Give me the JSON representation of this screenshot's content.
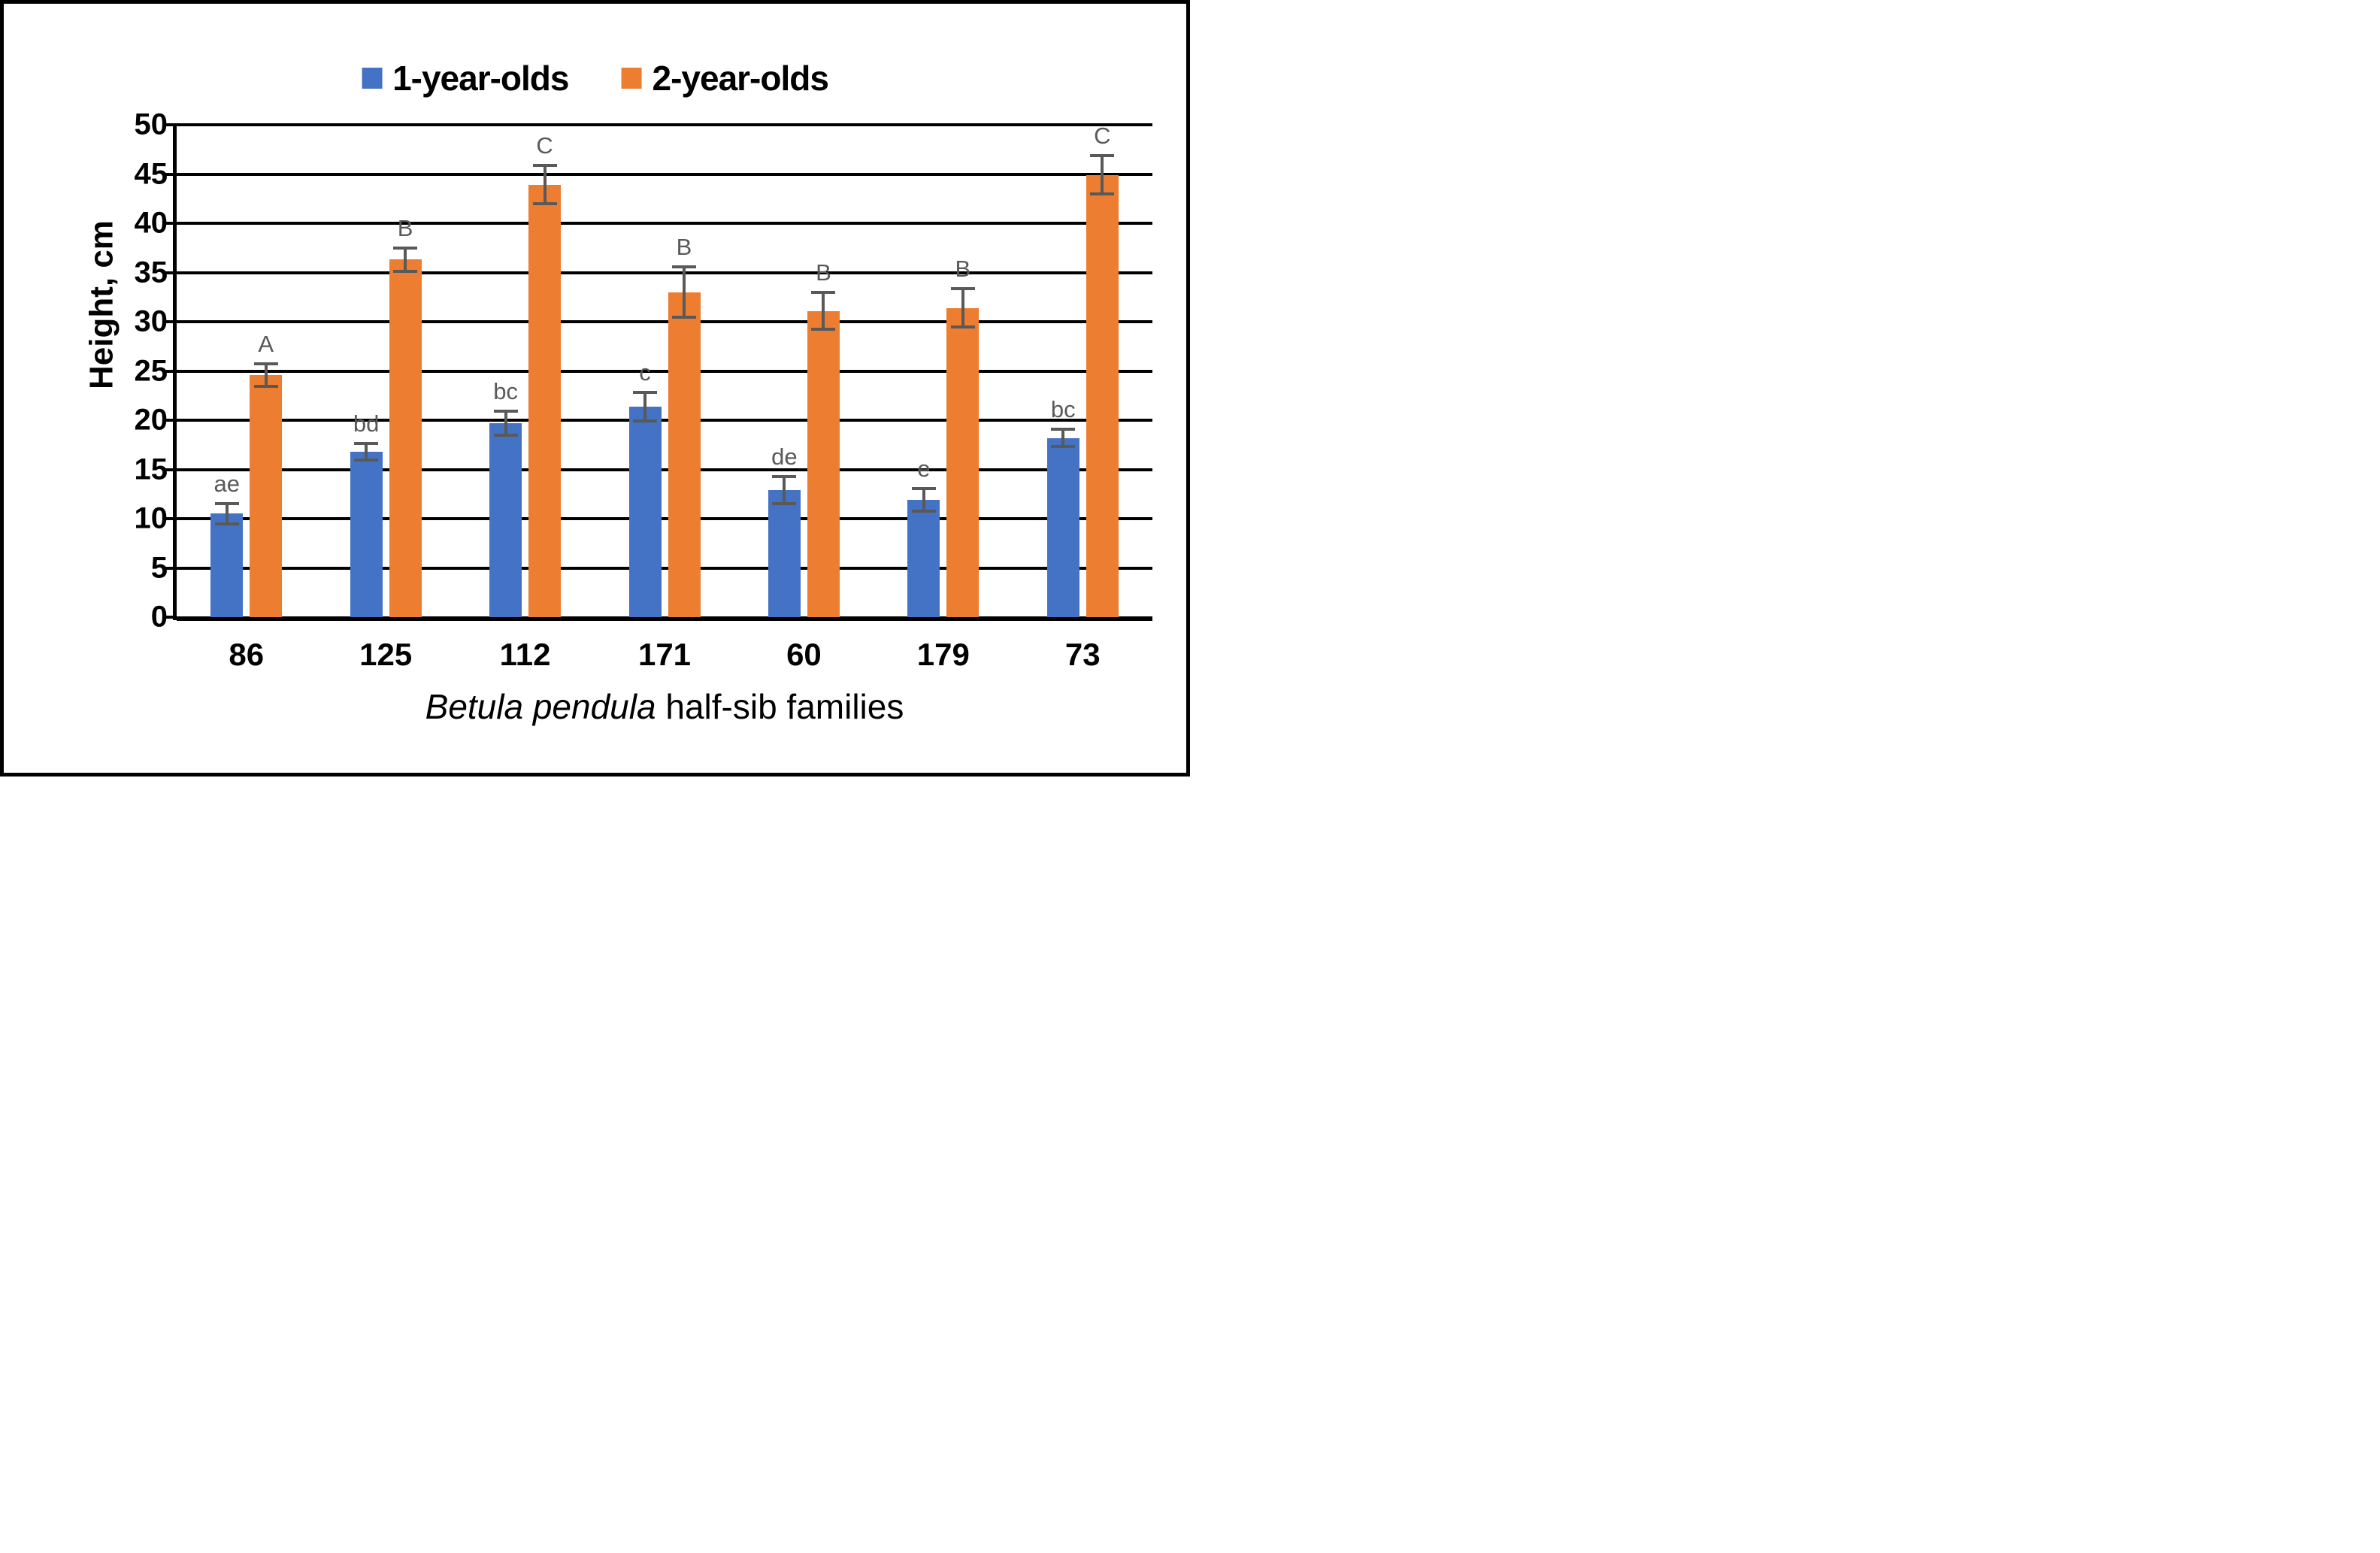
{
  "figure": {
    "y_axis_title": "Height, cm",
    "x_axis_title_italic": "Betula pendula",
    "x_axis_title_rest": " half-sib families"
  },
  "chart_data": {
    "type": "bar",
    "title": "",
    "xlabel": "Betula pendula half-sib families",
    "ylabel": "Height, cm",
    "ylim": [
      0,
      50
    ],
    "ytick_step": 5,
    "grid": true,
    "legend_position": "top-center",
    "categories": [
      "86",
      "125",
      "112",
      "171",
      "60",
      "179",
      "73"
    ],
    "series": [
      {
        "name": "1-year-olds",
        "color": "#4472C4",
        "values": [
          10.5,
          16.8,
          19.7,
          21.4,
          12.9,
          11.9,
          18.2
        ],
        "errors": [
          1.2,
          1.0,
          1.4,
          1.6,
          1.5,
          1.3,
          1.0
        ],
        "letters": [
          "ae",
          "bd",
          "bc",
          "c",
          "de",
          "e",
          "bc"
        ]
      },
      {
        "name": "2-year-olds",
        "color": "#ED7D31",
        "values": [
          24.6,
          36.3,
          43.9,
          33.0,
          31.1,
          31.4,
          44.9
        ],
        "errors": [
          1.3,
          1.3,
          2.1,
          2.7,
          2.0,
          2.1,
          2.1
        ],
        "letters": [
          "A",
          "B",
          "C",
          "B",
          "B",
          "B",
          "C"
        ]
      }
    ],
    "error_bar_color": "#595959",
    "letter_color": "#595959"
  }
}
